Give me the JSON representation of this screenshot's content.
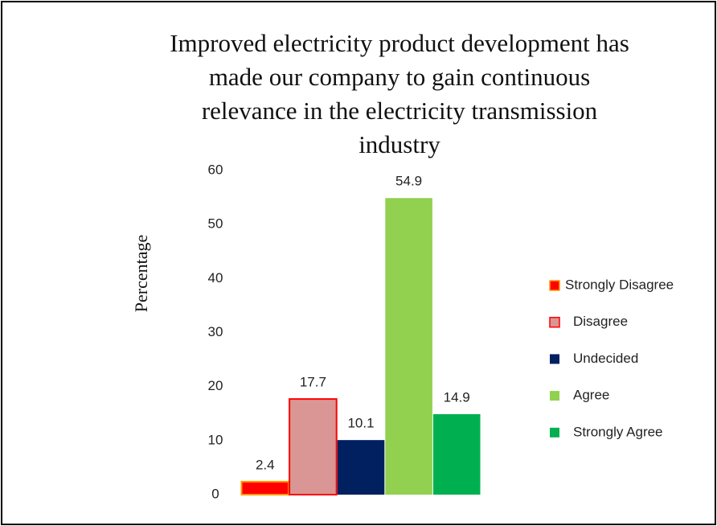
{
  "chart_data": {
    "type": "bar",
    "title": [
      "Improved electricity product development has",
      "made our company to gain continuous",
      "relevance in the electricity transmission",
      "industry"
    ],
    "ylabel": "Percentage",
    "ylim": [
      0,
      60
    ],
    "yticks": [
      0,
      10,
      20,
      30,
      40,
      50,
      60
    ],
    "grid": false,
    "legend": "right",
    "series": [
      {
        "name": "Strongly Disagree",
        "color": "#ff0000",
        "edge": "#ff9900",
        "values": [
          2.4
        ]
      },
      {
        "name": "Disagree",
        "color": "#d99694",
        "edge": "#ff0000",
        "values": [
          17.7
        ]
      },
      {
        "name": "Undecided",
        "color": "#002060",
        "values": [
          10.1
        ]
      },
      {
        "name": "Agree",
        "color": "#92d050",
        "values": [
          54.9
        ]
      },
      {
        "name": "Strongly Agree",
        "color": "#00b050",
        "values": [
          14.9
        ]
      }
    ]
  }
}
